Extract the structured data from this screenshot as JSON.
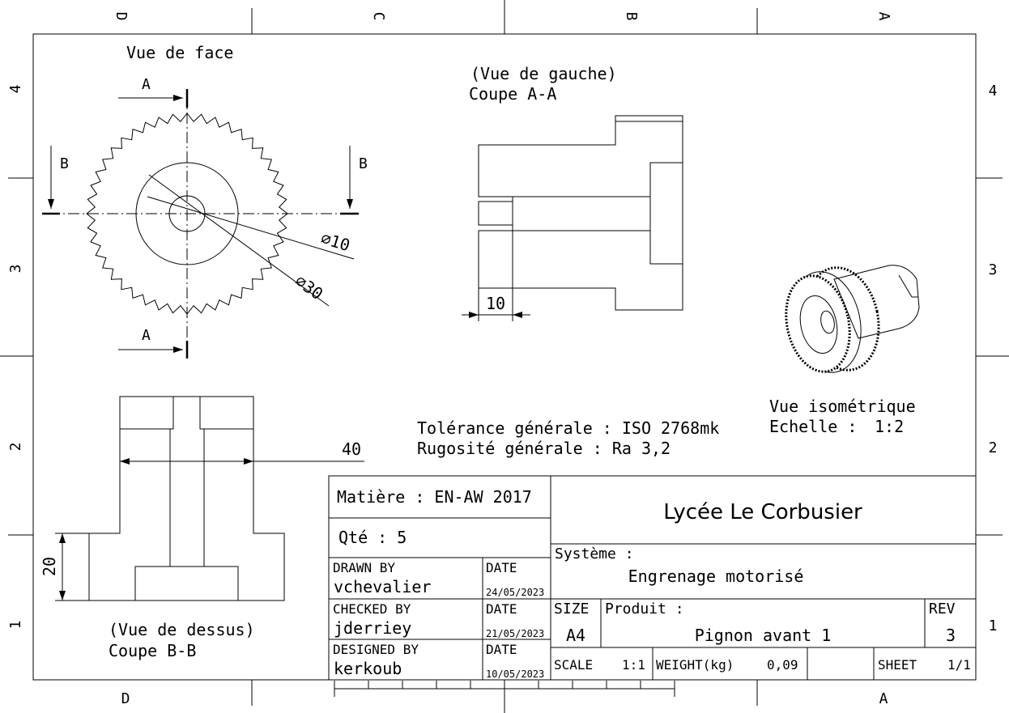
{
  "border": {
    "columns_top": [
      "D",
      "C",
      "B",
      "A"
    ],
    "columns_bottom": [
      "D",
      "A"
    ],
    "rows_left": [
      "4",
      "3",
      "2",
      "1"
    ],
    "rows_right": [
      "4",
      "3",
      "2",
      "1"
    ]
  },
  "views": {
    "front": {
      "title": "Vue de face",
      "section_a": "A",
      "section_b": "B",
      "dim_small": "⌀10",
      "dim_large": "⌀30"
    },
    "left": {
      "title_line1": "(Vue de gauche)",
      "title_line2": "Coupe A-A",
      "dim": "10"
    },
    "top": {
      "title_line1": "(Vue de dessus)",
      "title_line2": "Coupe B-B",
      "dim_width": "40",
      "dim_height": "20"
    },
    "iso": {
      "title": "Vue isométrique",
      "scale_label": "Echelle :",
      "scale_value": "1:2"
    }
  },
  "notes": {
    "tolerance": "Tolérance générale : ISO 2768mk",
    "roughness": "Rugosité générale : Ra 3,2"
  },
  "title_block": {
    "material": "Matière : EN-AW 2017",
    "quantity": "Qté : 5",
    "school": "Lycée Le Corbusier",
    "system_label": "Système :",
    "system_value": "Engrenage motorisé",
    "drawn_by_label": "DRAWN BY",
    "drawn_by": "vchevalier",
    "checked_by_label": "CHECKED BY",
    "checked_by": "jderriey",
    "designed_by_label": "DESIGNED BY",
    "designed_by": "kerkoub",
    "date_label": "DATE",
    "drawn_date": "24/05/2023",
    "checked_date": "21/05/2023",
    "designed_date": "10/05/2023",
    "size_label": "SIZE",
    "size": "A4",
    "product_label": "Produit :",
    "product": "Pignon avant 1",
    "rev_label": "REV",
    "rev": "3",
    "scale_label": "SCALE",
    "scale": "1:1",
    "weight_label": "WEIGHT(kg)",
    "weight": "0,09",
    "sheet_label": "SHEET",
    "sheet": "1/1"
  }
}
